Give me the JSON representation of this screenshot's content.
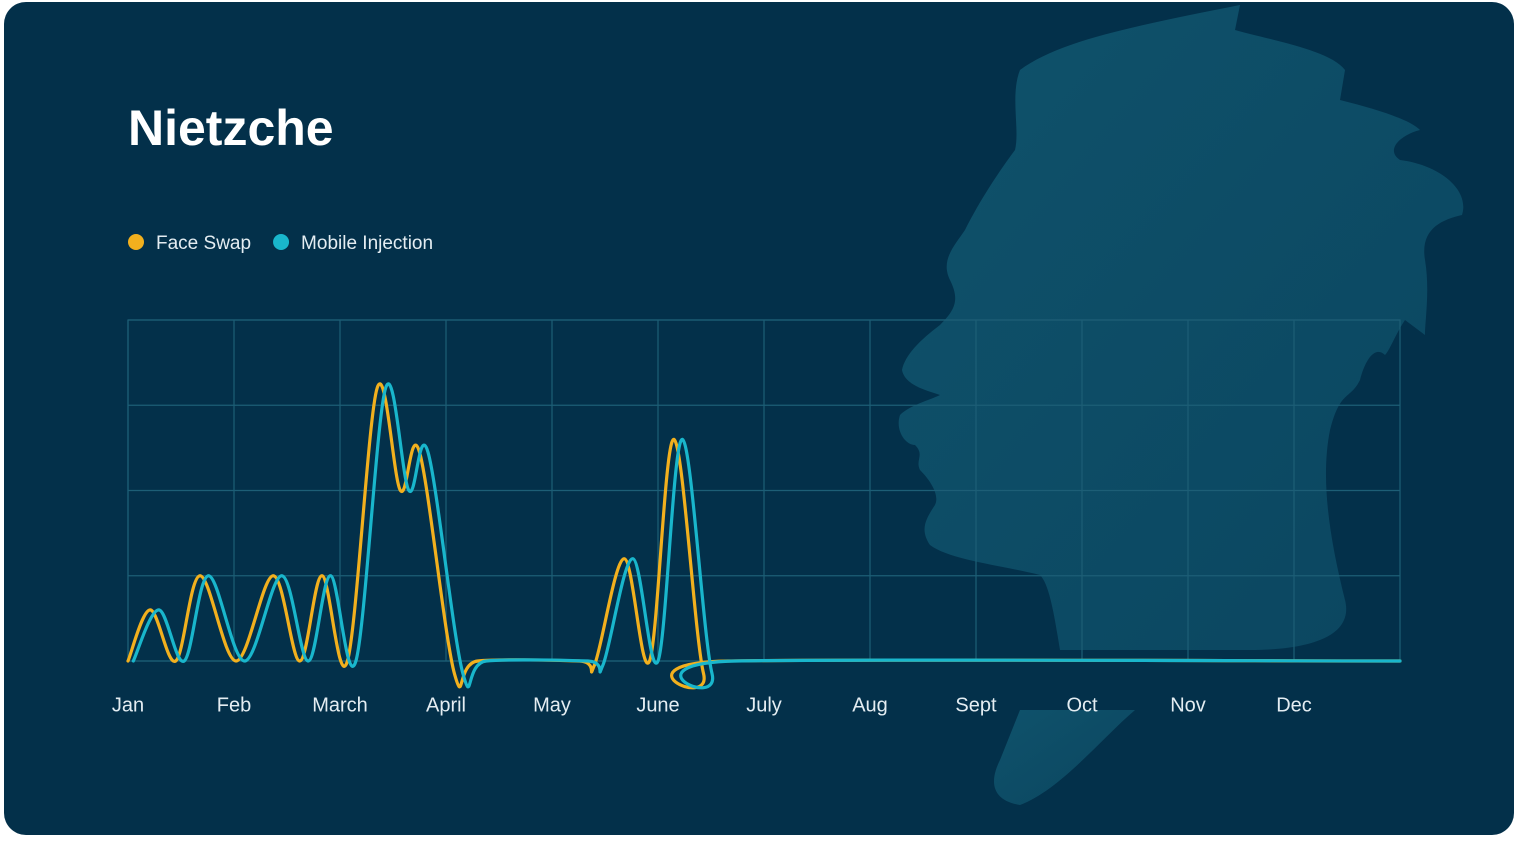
{
  "chart_data": {
    "type": "line",
    "title": "Nietzche",
    "xlim": [
      0,
      12
    ],
    "xticks": [
      {
        "value": 0,
        "label": "Jan"
      },
      {
        "value": 1,
        "label": "Feb"
      },
      {
        "value": 2,
        "label": "March"
      },
      {
        "value": 3,
        "label": "April"
      },
      {
        "value": 4,
        "label": "May"
      },
      {
        "value": 5,
        "label": "June"
      },
      {
        "value": 6,
        "label": "July"
      },
      {
        "value": 7,
        "label": "Aug"
      },
      {
        "value": 8,
        "label": "Sept"
      },
      {
        "value": 9,
        "label": "Oct"
      },
      {
        "value": 10,
        "label": "Nov"
      },
      {
        "value": 11,
        "label": "Dec"
      }
    ],
    "ylim": [
      0,
      4
    ],
    "yticks": [
      0,
      1,
      2,
      3,
      4
    ],
    "grid": true,
    "legend": "top-left",
    "series": [
      {
        "name": "Face Swap",
        "color": "#f2b01e",
        "x": [
          0,
          0.21,
          0.45,
          0.68,
          1.02,
          1.37,
          1.62,
          1.83,
          2.07,
          2.35,
          2.57,
          2.75,
          3.08,
          3.3,
          4.26,
          4.4,
          4.68,
          4.92,
          5.15,
          5.43,
          5.66,
          12
        ],
        "values": [
          0,
          0.6,
          0,
          1,
          0,
          1,
          0,
          1,
          0,
          3.2,
          2,
          2.45,
          -0.15,
          0,
          0,
          -0.05,
          1.2,
          0,
          2.6,
          -0.15,
          0,
          0
        ]
      },
      {
        "name": "Mobile Injection",
        "color": "#19b6cc",
        "x": [
          0.05,
          0.29,
          0.53,
          0.76,
          1.1,
          1.45,
          1.7,
          1.91,
          2.15,
          2.43,
          2.65,
          2.83,
          3.16,
          3.38,
          4.34,
          4.48,
          4.76,
          5.0,
          5.23,
          5.51,
          5.74,
          12
        ],
        "values": [
          0,
          0.6,
          0,
          1,
          0,
          1,
          0,
          1,
          0,
          3.2,
          2,
          2.45,
          -0.15,
          0,
          0,
          -0.05,
          1.2,
          0,
          2.6,
          -0.15,
          0,
          0
        ]
      }
    ]
  }
}
